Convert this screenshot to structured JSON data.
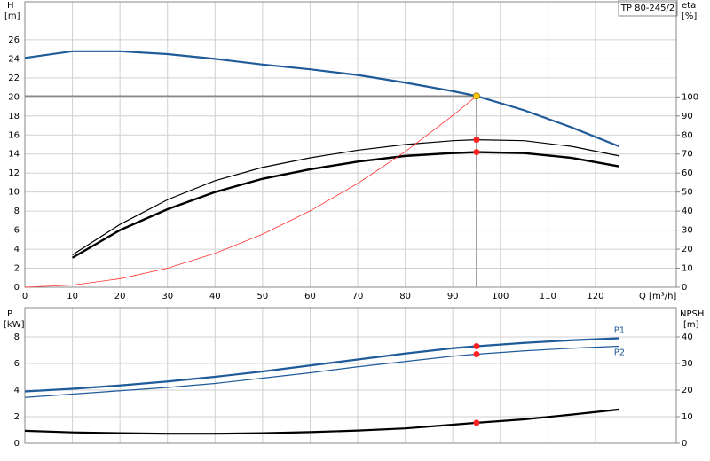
{
  "chart_data": [
    {
      "type": "line",
      "badge": "TP 80-245/2",
      "y_label": "H",
      "y_unit": "[m]",
      "y2_label": "eta",
      "y2_unit": "[%]",
      "x_label": "Q [m³/h]",
      "xlim": [
        0,
        137
      ],
      "ylim": [
        0,
        30
      ],
      "y2lim": [
        0,
        150
      ],
      "grid": true,
      "xticks": [
        0,
        10,
        20,
        30,
        40,
        50,
        60,
        70,
        80,
        90,
        100,
        110,
        120
      ],
      "yticks": [
        0,
        2,
        4,
        6,
        8,
        10,
        12,
        14,
        16,
        18,
        20,
        22,
        24,
        26
      ],
      "y2ticks": [
        0,
        10,
        20,
        30,
        40,
        50,
        60,
        70,
        80,
        90,
        100
      ],
      "x": [
        0,
        10,
        20,
        30,
        40,
        50,
        60,
        70,
        80,
        90,
        95,
        105,
        115,
        125
      ],
      "series": [
        {
          "color": "#1f5a99",
          "width": 2.2,
          "values": [
            24.1,
            24.8,
            24.8,
            24.5,
            24.0,
            23.4,
            22.9,
            22.3,
            21.5,
            20.6,
            20.1,
            18.6,
            16.8,
            14.8
          ]
        },
        {
          "color": "#000000",
          "width": 1.2,
          "axis": "y2",
          "values": [
            null,
            17,
            33,
            46,
            56,
            63,
            68,
            72,
            75,
            77,
            77.5,
            77,
            74,
            69
          ]
        },
        {
          "color": "#000000",
          "width": 2.4,
          "axis": "y2",
          "values": [
            null,
            15.5,
            30,
            41,
            50,
            57,
            62,
            66,
            69,
            70.5,
            71,
            70.5,
            68,
            63.5
          ]
        },
        {
          "color": "#ff3030",
          "width": 0.8,
          "values": [
            0,
            0.22,
            0.89,
            2.0,
            3.56,
            5.57,
            8.02,
            10.9,
            14.25,
            18.04,
            20.1,
            null,
            null,
            null
          ]
        }
      ],
      "duty_x": 95,
      "duty_points": [
        {
          "value": 20.1,
          "color": "#ffcc00"
        },
        {
          "value": 77.5,
          "axis": "y2",
          "color": "#ff2020"
        },
        {
          "value": 71,
          "axis": "y2",
          "color": "#ff2020"
        }
      ]
    },
    {
      "type": "line",
      "y_label": "P",
      "y_unit": "[kW]",
      "y2_label": "NPSH",
      "y2_unit": "[m]",
      "xlim": [
        0,
        137
      ],
      "ylim": [
        0,
        10.2
      ],
      "y2lim": [
        0,
        51
      ],
      "grid": true,
      "x_tick_labels": false,
      "xticks": [
        0,
        10,
        20,
        30,
        40,
        50,
        60,
        70,
        80,
        90,
        100,
        110,
        120
      ],
      "yticks": [
        0,
        2,
        4,
        6,
        8
      ],
      "y2ticks": [
        0,
        10,
        20,
        30,
        40
      ],
      "x": [
        0,
        10,
        20,
        30,
        40,
        50,
        60,
        70,
        80,
        90,
        95,
        105,
        115,
        125
      ],
      "series": [
        {
          "name": "P1",
          "color": "#1f5a99",
          "width": 2.2,
          "values": [
            3.9,
            4.1,
            4.35,
            4.65,
            5.0,
            5.4,
            5.85,
            6.3,
            6.75,
            7.15,
            7.3,
            7.55,
            7.75,
            7.9
          ]
        },
        {
          "name": "P2",
          "color": "#1f5a99",
          "width": 1.2,
          "values": [
            3.45,
            3.7,
            3.95,
            4.2,
            4.5,
            4.9,
            5.3,
            5.75,
            6.15,
            6.55,
            6.7,
            6.95,
            7.15,
            7.3
          ]
        },
        {
          "color": "#000000",
          "width": 2.2,
          "axis": "y2",
          "values": [
            4.7,
            4.1,
            3.8,
            3.6,
            3.6,
            3.8,
            4.2,
            4.8,
            5.6,
            7.0,
            7.7,
            9.0,
            10.8,
            12.7
          ]
        }
      ],
      "duty_x": 95,
      "duty_points": [
        {
          "value": 7.3,
          "color": "#ff2020"
        },
        {
          "value": 6.7,
          "color": "#ff2020"
        },
        {
          "value": 7.7,
          "axis": "y2",
          "color": "#ff2020"
        }
      ]
    }
  ]
}
